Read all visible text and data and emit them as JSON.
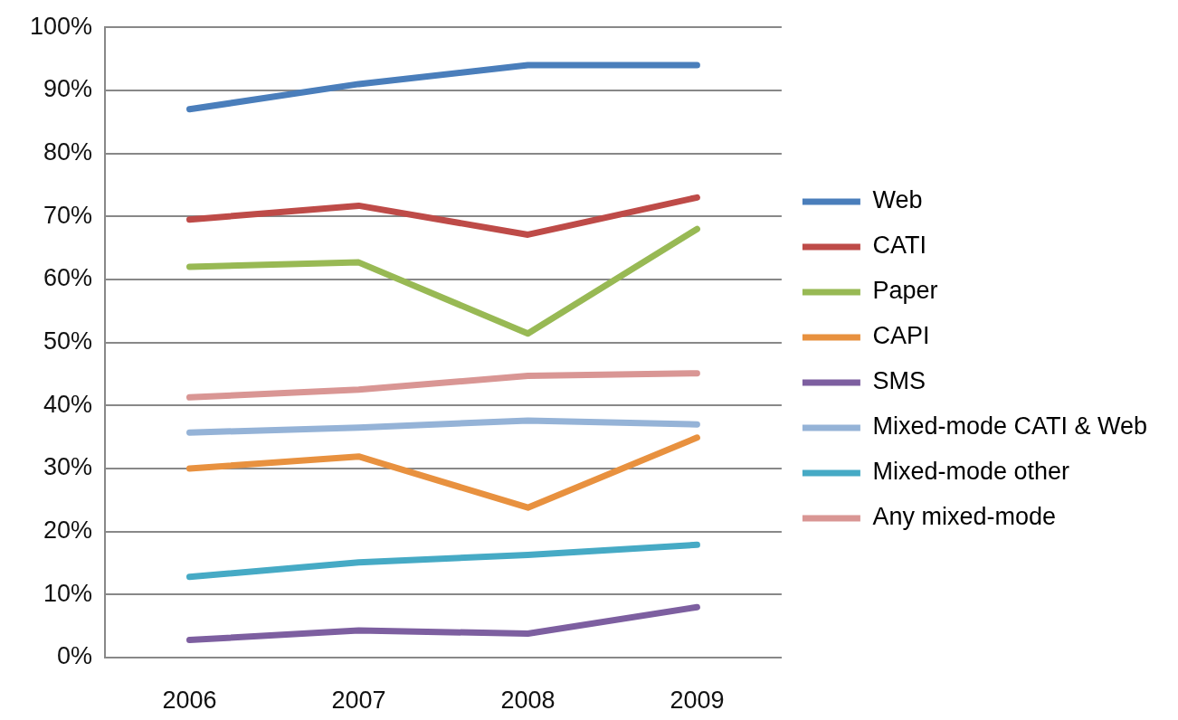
{
  "chart_data": {
    "type": "line",
    "categories": [
      "2006",
      "2007",
      "2008",
      "2009"
    ],
    "series": [
      {
        "name": "Web",
        "color": "#4a7ebb",
        "values": [
          87,
          91,
          94,
          94
        ]
      },
      {
        "name": "CATI",
        "color": "#be4b48",
        "values": [
          69.5,
          71.7,
          67.1,
          73
        ]
      },
      {
        "name": "Paper",
        "color": "#98b954",
        "values": [
          62,
          62.7,
          51.4,
          68
        ]
      },
      {
        "name": "CAPI",
        "color": "#e8913f",
        "values": [
          30,
          31.9,
          23.8,
          34.9
        ]
      },
      {
        "name": "SMS",
        "color": "#7d5fa0",
        "values": [
          2.8,
          4.3,
          3.8,
          8
        ]
      },
      {
        "name": "Mixed-mode CATI & Web",
        "color": "#95b3d7",
        "values": [
          35.7,
          36.5,
          37.6,
          37
        ]
      },
      {
        "name": "Mixed-mode other",
        "color": "#46aac5",
        "values": [
          12.8,
          15.1,
          16.3,
          17.9
        ]
      },
      {
        "name": "Any mixed-mode",
        "color": "#d99694",
        "values": [
          41.3,
          42.5,
          44.7,
          45.1
        ]
      }
    ],
    "ylim": [
      0,
      100
    ],
    "yticks": [
      {
        "value": 0,
        "label": "0%"
      },
      {
        "value": 10,
        "label": "10%"
      },
      {
        "value": 20,
        "label": "20%"
      },
      {
        "value": 30,
        "label": "30%"
      },
      {
        "value": 40,
        "label": "40%"
      },
      {
        "value": 50,
        "label": "50%"
      },
      {
        "value": 60,
        "label": "60%"
      },
      {
        "value": 70,
        "label": "70%"
      },
      {
        "value": 80,
        "label": "80%"
      },
      {
        "value": 90,
        "label": "90%"
      },
      {
        "value": 100,
        "label": "100%"
      }
    ],
    "grid": "y",
    "legend": "right",
    "marker": "none",
    "line_style": "solid"
  }
}
